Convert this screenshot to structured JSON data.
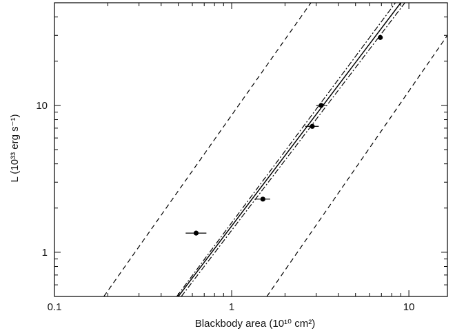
{
  "chart_data": {
    "type": "scatter",
    "xlabel": "Blackbody area (10¹⁰ cm²)",
    "ylabel": "L (10³³ erg s⁻¹)",
    "xscale": "log",
    "yscale": "log",
    "xlim": [
      0.1,
      16.5
    ],
    "ylim": [
      0.5,
      50
    ],
    "xticks": [
      0.1,
      1,
      10
    ],
    "xtick_labels": [
      "0.1",
      "1",
      "10"
    ],
    "yticks": [
      1,
      10
    ],
    "ytick_labels": [
      "1",
      "10"
    ],
    "grid": false,
    "points": [
      {
        "x": 0.63,
        "y": 1.35,
        "xerr": [
          0.55,
          0.72
        ]
      },
      {
        "x": 1.5,
        "y": 2.3,
        "xerr": [
          1.35,
          1.65
        ]
      },
      {
        "x": 2.85,
        "y": 7.2,
        "xerr": [
          2.6,
          3.1
        ]
      },
      {
        "x": 3.2,
        "y": 10.0,
        "xerr": [
          3.0,
          3.4
        ]
      },
      {
        "x": 6.9,
        "y": 29.0,
        "xerr": [
          6.75,
          7.05
        ]
      }
    ],
    "lines": [
      {
        "style": "solid",
        "from": [
          0.5,
          0.5
        ],
        "to": [
          9.0,
          50
        ]
      },
      {
        "style": "dashdot",
        "from": [
          0.52,
          0.5
        ],
        "to": [
          9.5,
          50
        ]
      },
      {
        "style": "dashdot",
        "from": [
          0.49,
          0.5
        ],
        "to": [
          8.4,
          50
        ]
      },
      {
        "style": "dashed",
        "from": [
          0.19,
          0.5
        ],
        "to": [
          2.8,
          50
        ]
      },
      {
        "style": "dashed",
        "from": [
          1.58,
          0.5
        ],
        "to": [
          16.5,
          30
        ]
      }
    ]
  }
}
